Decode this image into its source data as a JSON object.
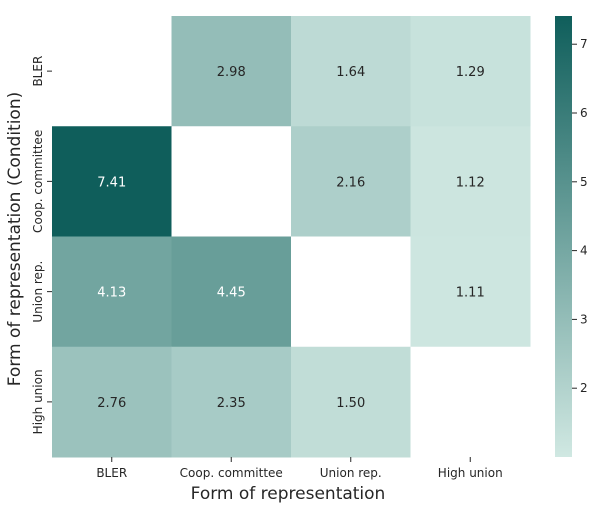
{
  "chart_data": {
    "type": "heatmap",
    "xlabel": "Form of representation",
    "ylabel": "Form of representation (Condition)",
    "x_categories": [
      "BLER",
      "Coop. committee",
      "Union rep.",
      "High union"
    ],
    "y_categories": [
      "BLER",
      "Coop. committee",
      "Union rep.",
      "High union"
    ],
    "values": [
      [
        null,
        2.98,
        1.64,
        1.29
      ],
      [
        7.41,
        null,
        2.16,
        1.12
      ],
      [
        4.13,
        4.45,
        null,
        1.11
      ],
      [
        2.76,
        2.35,
        1.5,
        null
      ]
    ],
    "value_labels": [
      [
        "",
        "2.98",
        "1.64",
        "1.29"
      ],
      [
        "7.41",
        "",
        "2.16",
        "1.12"
      ],
      [
        "4.13",
        "4.45",
        "",
        "1.11"
      ],
      [
        "2.76",
        "2.35",
        "1.50",
        ""
      ]
    ],
    "colorbar": {
      "range": [
        1.0,
        7.41
      ],
      "ticks": [
        2,
        3,
        4,
        5,
        6,
        7
      ],
      "tick_labels": [
        "2",
        "3",
        "4",
        "5",
        "6",
        "7"
      ],
      "color_low": "#d0e8e2",
      "color_high": "#0f5e5b"
    },
    "colors": {
      "text_dark": "#262626",
      "text_light": "#ffffff",
      "missing": "#ffffff"
    }
  }
}
